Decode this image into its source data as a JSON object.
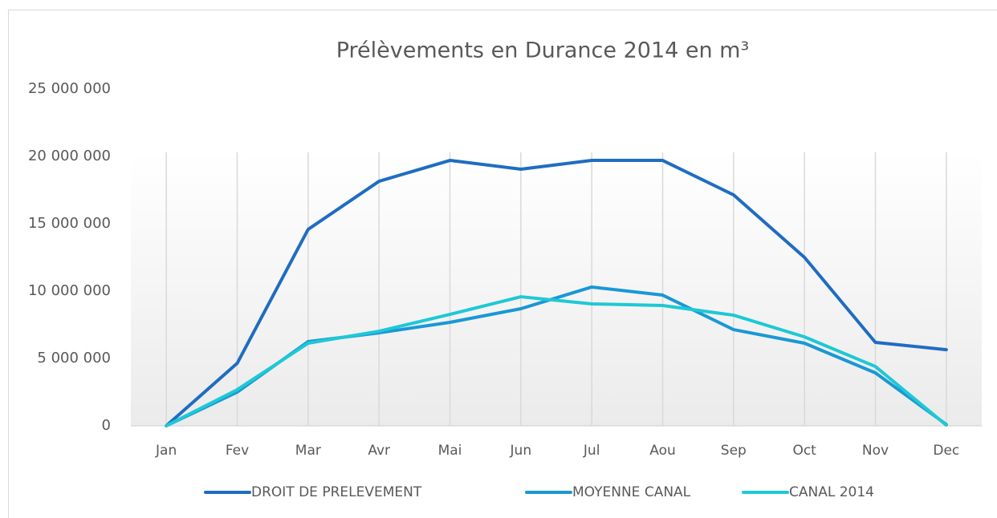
{
  "chart_data": {
    "type": "line",
    "title": "Prélèvements  en Durance 2014 en m³",
    "categories": [
      "Jan",
      "Fev",
      "Mar",
      "Avr",
      "Mai",
      "Jun",
      "Jul",
      "Aou",
      "Sep",
      "Oct",
      "Nov",
      "Dec"
    ],
    "series": [
      {
        "name": "DROIT DE PRELEVEMENT",
        "color": "#1f6dc2",
        "values": [
          0,
          4640000,
          14580000,
          18150000,
          19700000,
          19050000,
          19700000,
          19700000,
          17140000,
          12500000,
          6190000,
          5650000
        ]
      },
      {
        "name": "MOYENNE CANAL",
        "color": "#1a98d5",
        "values": [
          0,
          2500000,
          6250000,
          6900000,
          7680000,
          8690000,
          10300000,
          9700000,
          7140000,
          6130000,
          3930000,
          100000
        ]
      },
      {
        "name": "CANAL 2014",
        "color": "#1ec8d5",
        "values": [
          0,
          2680000,
          6130000,
          7020000,
          8270000,
          9580000,
          9050000,
          8930000,
          8210000,
          6600000,
          4400000,
          50000
        ]
      }
    ],
    "ylim": [
      0,
      25000000
    ],
    "yticks": [
      0,
      {
        "value": 5000000,
        "label": "5 000 000"
      },
      {
        "value": 10000000,
        "label": "10 000 000"
      },
      {
        "value": 15000000,
        "label": "15 000 000"
      },
      {
        "value": 20000000,
        "label": "20 000 000"
      },
      {
        "value": 25000000,
        "label": "25 000 000"
      }
    ],
    "legend": "bottom"
  }
}
